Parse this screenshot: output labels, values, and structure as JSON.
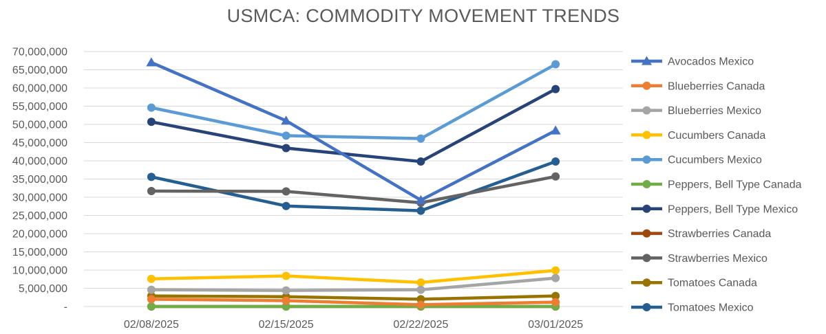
{
  "chart_data": {
    "type": "line",
    "title": "USMCA: COMMODITY MOVEMENT TRENDS",
    "xlabel": "",
    "ylabel": "",
    "ylim": [
      0,
      70000000
    ],
    "y_tick_labels": [
      "-",
      "5,000,000",
      "10,000,000",
      "15,000,000",
      "20,000,000",
      "25,000,000",
      "30,000,000",
      "35,000,000",
      "40,000,000",
      "45,000,000",
      "50,000,000",
      "55,000,000",
      "60,000,000",
      "65,000,000",
      "70,000,000"
    ],
    "grid": "horizontal",
    "legend_position": "right",
    "categories": [
      "02/08/2025",
      "02/15/2025",
      "02/22/2025",
      "03/01/2025"
    ],
    "series": [
      {
        "name": "Avocados Mexico",
        "color": "#4472C4",
        "marker": "triangle",
        "values": [
          67000000,
          51000000,
          29200000,
          48300000
        ]
      },
      {
        "name": "Blueberries Canada",
        "color": "#ED7D31",
        "marker": "circle",
        "values": [
          2000000,
          1600000,
          500000,
          1200000
        ]
      },
      {
        "name": "Blueberries Mexico",
        "color": "#A5A5A5",
        "marker": "circle",
        "values": [
          4600000,
          4400000,
          4600000,
          7800000
        ]
      },
      {
        "name": "Cucumbers Canada",
        "color": "#FFC000",
        "marker": "circle",
        "values": [
          7600000,
          8400000,
          6600000,
          9900000
        ]
      },
      {
        "name": "Cucumbers Mexico",
        "color": "#5B9BD5",
        "marker": "circle",
        "values": [
          54600000,
          46900000,
          46100000,
          66500000
        ]
      },
      {
        "name": "Peppers, Bell Type Canada",
        "color": "#70AD47",
        "marker": "circle",
        "values": [
          0,
          0,
          0,
          0
        ]
      },
      {
        "name": "Peppers, Bell Type Mexico",
        "color": "#264478",
        "marker": "circle",
        "values": [
          50700000,
          43500000,
          39800000,
          59700000
        ]
      },
      {
        "name": "Strawberries Canada",
        "color": "#9E480E",
        "marker": "circle",
        "values": [
          0,
          0,
          0,
          0
        ]
      },
      {
        "name": "Strawberries Mexico",
        "color": "#636363",
        "marker": "circle",
        "values": [
          31700000,
          31600000,
          28500000,
          35700000
        ]
      },
      {
        "name": "Tomatoes Canada",
        "color": "#997300",
        "marker": "circle",
        "values": [
          2900000,
          2700000,
          2000000,
          2900000
        ]
      },
      {
        "name": "Tomatoes Mexico",
        "color": "#255E91",
        "marker": "circle",
        "values": [
          35600000,
          27600000,
          26300000,
          39800000
        ]
      }
    ]
  }
}
